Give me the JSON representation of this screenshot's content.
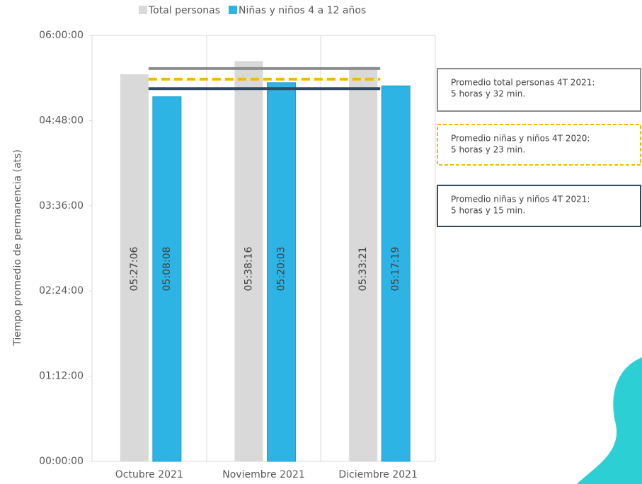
{
  "chart_data": {
    "type": "bar",
    "y_label": "Tiempo promedio de permanencia (ats)",
    "categories": [
      "Octubre 2021",
      "Noviembre 2021",
      "Diciembre 2021"
    ],
    "series": [
      {
        "name": "Total personas",
        "color": "#d9d9d9",
        "values": [
          19626,
          20296,
          20001
        ],
        "value_labels": [
          "05:27:06",
          "05:38:16",
          "05:33:21"
        ]
      },
      {
        "name": "Niñas y niños 4 a 12 años",
        "color": "#2eb3e5",
        "values": [
          18488,
          19203,
          19039
        ],
        "value_labels": [
          "05:08:08",
          "05:20:03",
          "05:17:19"
        ]
      }
    ],
    "ylim": [
      0,
      21600
    ],
    "yticks": [
      {
        "value": 0,
        "label": "00:00:00"
      },
      {
        "value": 4320,
        "label": "01:12:00"
      },
      {
        "value": 8640,
        "label": "02:24:00"
      },
      {
        "value": 12960,
        "label": "03:36:00"
      },
      {
        "value": 17280,
        "label": "04:48:00"
      },
      {
        "value": 21600,
        "label": "06:00:00"
      }
    ],
    "reference_lines": [
      {
        "value": 19920,
        "color": "#8c8c8c",
        "style": "solid",
        "label": [
          "Promedio total personas 4T 2021:",
          "5 horas y 32 min."
        ]
      },
      {
        "value": 19380,
        "color": "#f5b800",
        "style": "dashed",
        "label": [
          "Promedio niñas y niños 4T 2020:",
          "5 horas y 23 min."
        ]
      },
      {
        "value": 18900,
        "color": "#2e4a62",
        "style": "solid",
        "label": [
          "Promedio niñas y niños 4T 2021:",
          "5 horas y 15 min."
        ]
      }
    ]
  }
}
